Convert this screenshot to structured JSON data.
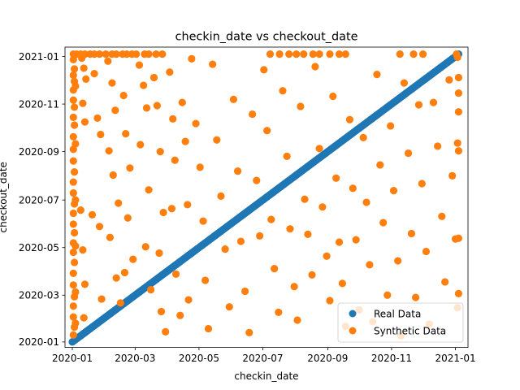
{
  "chart_data": {
    "type": "scatter",
    "title": "checkin_date vs checkout_date",
    "xlabel": "checkin_date",
    "ylabel": "checkout_date",
    "xlim": [
      "2019-12-25",
      "2021-01-13"
    ],
    "ylim": [
      "2019-12-25",
      "2021-01-13"
    ],
    "xticks": [
      "2020-01",
      "2020-03",
      "2020-05",
      "2020-07",
      "2020-09",
      "2020-11",
      "2021-01"
    ],
    "yticks": [
      "2020-01",
      "2020-03",
      "2020-05",
      "2020-07",
      "2020-09",
      "2020-11",
      "2021-01"
    ],
    "grid": false,
    "legend_position": "lower-right",
    "series": [
      {
        "name": "Real Data",
        "color": "#1f77b4",
        "marker": "circle",
        "description": "points lie on the diagonal checkout_date = checkin_date, densely covering 2020-01-01 to 2021-01-04",
        "x_range": [
          "2020-01-01",
          "2021-01-04"
        ]
      },
      {
        "name": "Synthetic Data",
        "color": "#ff7f0e",
        "marker": "circle",
        "points": [
          [
            "2020-01-02",
            "2021-01-04"
          ],
          [
            "2020-01-05",
            "2021-01-04"
          ],
          [
            "2020-01-09",
            "2021-01-04"
          ],
          [
            "2020-01-13",
            "2021-01-04"
          ],
          [
            "2020-01-18",
            "2021-01-04"
          ],
          [
            "2020-01-22",
            "2021-01-04"
          ],
          [
            "2020-01-27",
            "2021-01-04"
          ],
          [
            "2020-02-02",
            "2021-01-04"
          ],
          [
            "2020-02-08",
            "2021-01-04"
          ],
          [
            "2020-02-12",
            "2021-01-04"
          ],
          [
            "2020-02-18",
            "2021-01-04"
          ],
          [
            "2020-02-22",
            "2021-01-04"
          ],
          [
            "2020-02-27",
            "2021-01-04"
          ],
          [
            "2020-03-02",
            "2021-01-04"
          ],
          [
            "2020-03-10",
            "2021-01-04"
          ],
          [
            "2020-03-14",
            "2021-01-04"
          ],
          [
            "2020-03-21",
            "2021-01-04"
          ],
          [
            "2020-03-27",
            "2021-01-04"
          ],
          [
            "2020-07-08",
            "2021-01-04"
          ],
          [
            "2020-07-17",
            "2021-01-04"
          ],
          [
            "2020-07-26",
            "2021-01-04"
          ],
          [
            "2020-08-02",
            "2021-01-04"
          ],
          [
            "2020-08-09",
            "2021-01-04"
          ],
          [
            "2020-08-18",
            "2021-01-04"
          ],
          [
            "2020-08-24",
            "2021-01-04"
          ],
          [
            "2020-09-03",
            "2021-01-04"
          ],
          [
            "2020-09-12",
            "2021-01-04"
          ],
          [
            "2020-09-18",
            "2021-01-04"
          ],
          [
            "2020-11-09",
            "2021-01-04"
          ],
          [
            "2020-11-22",
            "2021-01-04"
          ],
          [
            "2020-12-01",
            "2021-01-04"
          ],
          [
            "2021-01-02",
            "2021-01-04"
          ],
          [
            "2020-01-02",
            "2020-12-28"
          ],
          [
            "2020-01-03",
            "2020-12-16"
          ],
          [
            "2020-01-02",
            "2020-12-08"
          ],
          [
            "2020-01-03",
            "2020-11-30"
          ],
          [
            "2020-01-02",
            "2020-11-19"
          ],
          [
            "2020-01-02",
            "2020-11-06"
          ],
          [
            "2020-01-03",
            "2020-10-28"
          ],
          [
            "2020-01-02",
            "2020-10-15"
          ],
          [
            "2020-01-03",
            "2020-10-05"
          ],
          [
            "2020-01-02",
            "2020-09-20"
          ],
          [
            "2020-01-02",
            "2020-09-04"
          ],
          [
            "2020-01-02",
            "2020-08-20"
          ],
          [
            "2020-01-03",
            "2020-08-06"
          ],
          [
            "2020-01-02",
            "2020-07-24"
          ],
          [
            "2020-01-02",
            "2020-07-10"
          ],
          [
            "2020-01-03",
            "2020-06-26"
          ],
          [
            "2020-01-02",
            "2020-06-14"
          ],
          [
            "2020-01-02",
            "2020-05-31"
          ],
          [
            "2020-01-03",
            "2020-05-20"
          ],
          [
            "2020-01-02",
            "2020-05-07"
          ],
          [
            "2020-01-02",
            "2020-04-25"
          ],
          [
            "2020-01-03",
            "2020-04-12"
          ],
          [
            "2020-01-02",
            "2020-03-29"
          ],
          [
            "2020-01-02",
            "2020-03-14"
          ],
          [
            "2020-01-03",
            "2020-02-28"
          ],
          [
            "2020-01-02",
            "2020-02-16"
          ],
          [
            "2020-01-02",
            "2020-02-02"
          ],
          [
            "2020-01-03",
            "2020-01-20"
          ],
          [
            "2020-01-02",
            "2020-01-10"
          ],
          [
            "2020-01-04",
            "2020-01-25"
          ],
          [
            "2020-01-04",
            "2020-03-05"
          ],
          [
            "2020-01-04",
            "2020-05-03"
          ],
          [
            "2020-01-04",
            "2020-07-01"
          ],
          [
            "2020-01-04",
            "2020-09-11"
          ],
          [
            "2020-01-04",
            "2020-11-24"
          ],
          [
            "2020-01-10",
            "2020-12-30"
          ],
          [
            "2020-01-12",
            "2020-12-17"
          ],
          [
            "2020-01-14",
            "2020-12-03"
          ],
          [
            "2020-01-11",
            "2020-11-02"
          ],
          [
            "2020-01-13",
            "2020-10-09"
          ],
          [
            "2020-01-09",
            "2020-06-18"
          ],
          [
            "2020-01-11",
            "2020-04-28"
          ],
          [
            "2020-01-13",
            "2020-03-15"
          ],
          [
            "2020-01-12",
            "2020-02-01"
          ],
          [
            "2020-01-22",
            "2020-12-10"
          ],
          [
            "2020-01-25",
            "2020-10-14"
          ],
          [
            "2020-01-28",
            "2020-09-23"
          ],
          [
            "2020-01-20",
            "2020-06-12"
          ],
          [
            "2020-01-27",
            "2020-05-28"
          ],
          [
            "2020-01-29",
            "2020-02-25"
          ],
          [
            "2020-02-04",
            "2020-12-26"
          ],
          [
            "2020-02-08",
            "2020-11-28"
          ],
          [
            "2020-02-11",
            "2020-10-24"
          ],
          [
            "2020-02-05",
            "2020-09-02"
          ],
          [
            "2020-02-09",
            "2020-08-02"
          ],
          [
            "2020-02-14",
            "2020-06-27"
          ],
          [
            "2020-02-06",
            "2020-05-14"
          ],
          [
            "2020-02-12",
            "2020-03-23"
          ],
          [
            "2020-02-16",
            "2020-02-20"
          ],
          [
            "2020-02-19",
            "2020-11-12"
          ],
          [
            "2020-02-21",
            "2020-09-24"
          ],
          [
            "2020-02-25",
            "2020-08-11"
          ],
          [
            "2020-02-23",
            "2020-06-08"
          ],
          [
            "2020-02-28",
            "2020-04-16"
          ],
          [
            "2020-02-20",
            "2020-03-30"
          ],
          [
            "2020-03-05",
            "2020-12-21"
          ],
          [
            "2020-03-09",
            "2020-11-25"
          ],
          [
            "2020-03-12",
            "2020-10-27"
          ],
          [
            "2020-03-06",
            "2020-09-10"
          ],
          [
            "2020-03-14",
            "2020-07-14"
          ],
          [
            "2020-03-11",
            "2020-05-02"
          ],
          [
            "2020-03-16",
            "2020-03-08"
          ],
          [
            "2020-03-19",
            "2020-12-05"
          ],
          [
            "2020-03-22",
            "2020-10-30"
          ],
          [
            "2020-03-25",
            "2020-09-01"
          ],
          [
            "2020-03-28",
            "2020-06-15"
          ],
          [
            "2020-03-24",
            "2020-04-24"
          ],
          [
            "2020-03-26",
            "2020-02-09"
          ],
          [
            "2020-03-30",
            "2020-01-14"
          ],
          [
            "2020-04-03",
            "2020-12-12"
          ],
          [
            "2020-04-06",
            "2020-10-13"
          ],
          [
            "2020-04-08",
            "2020-08-21"
          ],
          [
            "2020-04-05",
            "2020-06-20"
          ],
          [
            "2020-04-09",
            "2020-03-28"
          ],
          [
            "2020-04-13",
            "2020-02-04"
          ],
          [
            "2020-04-15",
            "2020-11-03"
          ],
          [
            "2020-04-18",
            "2020-09-14"
          ],
          [
            "2020-04-20",
            "2020-06-25"
          ],
          [
            "2020-04-21",
            "2020-02-24"
          ],
          [
            "2020-04-24",
            "2020-12-29"
          ],
          [
            "2020-04-28",
            "2020-10-07"
          ],
          [
            "2020-05-02",
            "2020-08-12"
          ],
          [
            "2020-05-05",
            "2020-06-04"
          ],
          [
            "2020-05-07",
            "2020-03-20"
          ],
          [
            "2020-05-10",
            "2020-01-18"
          ],
          [
            "2020-05-14",
            "2020-12-22"
          ],
          [
            "2020-05-18",
            "2020-09-16"
          ],
          [
            "2020-05-22",
            "2020-07-06"
          ],
          [
            "2020-05-26",
            "2020-04-29"
          ],
          [
            "2020-05-30",
            "2020-02-15"
          ],
          [
            "2020-06-03",
            "2020-11-07"
          ],
          [
            "2020-06-07",
            "2020-08-07"
          ],
          [
            "2020-06-10",
            "2020-05-09"
          ],
          [
            "2020-06-14",
            "2020-03-06"
          ],
          [
            "2020-06-18",
            "2020-01-13"
          ],
          [
            "2020-06-21",
            "2020-10-19"
          ],
          [
            "2020-06-25",
            "2020-07-26"
          ],
          [
            "2020-06-28",
            "2020-05-16"
          ],
          [
            "2020-07-02",
            "2020-12-15"
          ],
          [
            "2020-07-05",
            "2020-09-28"
          ],
          [
            "2020-07-09",
            "2020-06-06"
          ],
          [
            "2020-07-12",
            "2020-04-04"
          ],
          [
            "2020-07-16",
            "2020-02-08"
          ],
          [
            "2020-07-20",
            "2020-11-18"
          ],
          [
            "2020-07-24",
            "2020-08-26"
          ],
          [
            "2020-07-27",
            "2020-05-25"
          ],
          [
            "2020-07-31",
            "2020-03-12"
          ],
          [
            "2020-08-03",
            "2020-01-29"
          ],
          [
            "2020-08-06",
            "2020-10-29"
          ],
          [
            "2020-08-10",
            "2020-07-02"
          ],
          [
            "2020-08-13",
            "2020-05-18"
          ],
          [
            "2020-08-17",
            "2020-03-27"
          ],
          [
            "2020-08-20",
            "2020-12-19"
          ],
          [
            "2020-08-24",
            "2020-09-05"
          ],
          [
            "2020-08-27",
            "2020-06-22"
          ],
          [
            "2020-08-31",
            "2020-04-20"
          ],
          [
            "2020-09-03",
            "2020-02-23"
          ],
          [
            "2020-09-06",
            "2020-11-11"
          ],
          [
            "2020-09-09",
            "2020-07-29"
          ],
          [
            "2020-09-12",
            "2020-05-08"
          ],
          [
            "2020-09-15",
            "2020-03-16"
          ],
          [
            "2020-09-18",
            "2020-01-21"
          ],
          [
            "2020-09-22",
            "2020-10-12"
          ],
          [
            "2020-09-25",
            "2020-07-16"
          ],
          [
            "2020-09-28",
            "2020-05-11"
          ],
          [
            "2020-10-01",
            "2020-02-11"
          ],
          [
            "2020-10-05",
            "2020-09-19"
          ],
          [
            "2020-10-08",
            "2020-06-28"
          ],
          [
            "2020-10-11",
            "2020-04-09"
          ],
          [
            "2020-10-14",
            "2020-01-27"
          ],
          [
            "2020-10-18",
            "2020-12-09"
          ],
          [
            "2020-10-21",
            "2020-08-15"
          ],
          [
            "2020-10-24",
            "2020-06-02"
          ],
          [
            "2020-10-28",
            "2020-03-01"
          ],
          [
            "2020-10-31",
            "2020-10-04"
          ],
          [
            "2020-11-03",
            "2020-07-13"
          ],
          [
            "2020-11-07",
            "2020-04-14"
          ],
          [
            "2020-11-10",
            "2020-01-09"
          ],
          [
            "2020-11-13",
            "2020-11-28"
          ],
          [
            "2020-11-17",
            "2020-08-30"
          ],
          [
            "2020-11-20",
            "2020-05-19"
          ],
          [
            "2020-11-24",
            "2020-02-27"
          ],
          [
            "2020-11-27",
            "2020-10-31"
          ],
          [
            "2020-11-30",
            "2020-07-22"
          ],
          [
            "2020-12-04",
            "2020-04-26"
          ],
          [
            "2020-12-07",
            "2020-01-24"
          ],
          [
            "2020-12-11",
            "2020-11-03"
          ],
          [
            "2020-12-15",
            "2020-09-08"
          ],
          [
            "2020-12-19",
            "2020-06-10"
          ],
          [
            "2020-12-22",
            "2020-03-18"
          ],
          [
            "2020-12-26",
            "2020-12-02"
          ],
          [
            "2020-12-29",
            "2020-08-01"
          ],
          [
            "2021-01-01",
            "2020-05-12"
          ],
          [
            "2021-01-03",
            "2020-02-14"
          ],
          [
            "2021-01-04",
            "2020-10-22"
          ],
          [
            "2021-01-04",
            "2020-09-02"
          ],
          [
            "2021-01-04",
            "2020-03-03"
          ],
          [
            "2021-01-03",
            "2020-09-12"
          ],
          [
            "2021-01-04",
            "2020-12-05"
          ],
          [
            "2021-01-04",
            "2020-11-15"
          ],
          [
            "2021-01-03",
            "2020-12-31"
          ],
          [
            "2021-01-04",
            "2020-05-13"
          ]
        ]
      }
    ]
  }
}
